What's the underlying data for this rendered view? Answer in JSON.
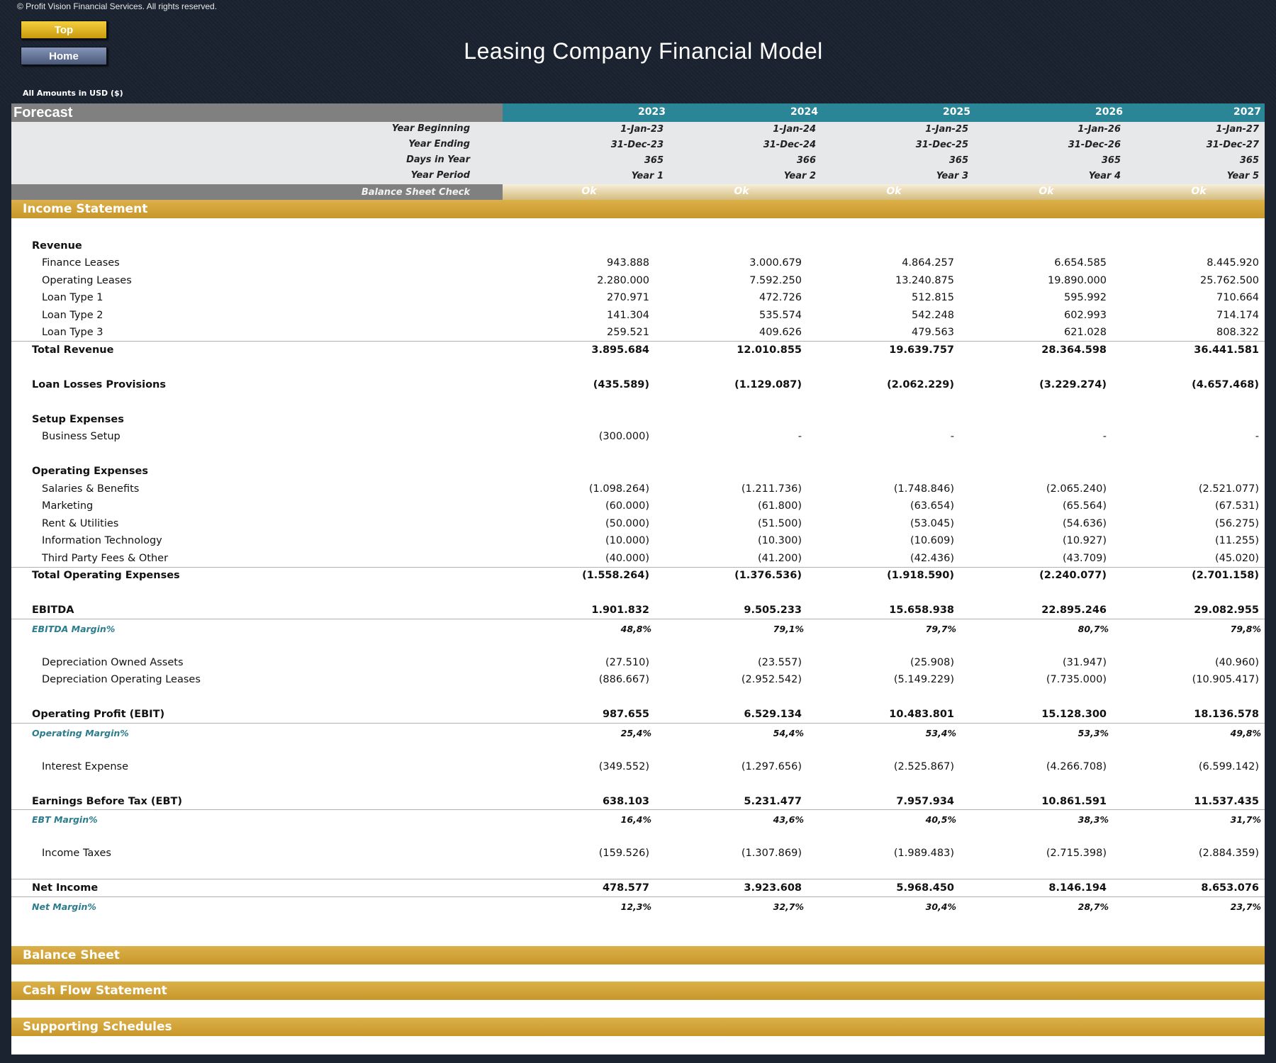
{
  "copyright": "© Profit Vision Financial Services. All rights reserved.",
  "nav": {
    "top_label": "Top",
    "home_label": "Home"
  },
  "title": "Leasing Company Financial Model",
  "units": "All Amounts in  USD ($)",
  "forecast_label": "Forecast",
  "years": [
    "2023",
    "2024",
    "2025",
    "2026",
    "2027"
  ],
  "meta_rows": [
    {
      "label": "Year Beginning",
      "values": [
        "1-Jan-23",
        "1-Jan-24",
        "1-Jan-25",
        "1-Jan-26",
        "1-Jan-27"
      ]
    },
    {
      "label": "Year Ending",
      "values": [
        "31-Dec-23",
        "31-Dec-24",
        "31-Dec-25",
        "31-Dec-26",
        "31-Dec-27"
      ]
    },
    {
      "label": "Days in Year",
      "values": [
        "365",
        "366",
        "365",
        "365",
        "365"
      ]
    },
    {
      "label": "Year Period",
      "values": [
        "Year 1",
        "Year 2",
        "Year 3",
        "Year 4",
        "Year 5"
      ]
    }
  ],
  "balance_check": {
    "label": "Balance Sheet Check",
    "values": [
      "Ok",
      "Ok",
      "Ok",
      "Ok",
      "Ok"
    ]
  },
  "sections": {
    "income": "Income Statement",
    "balance": "Balance Sheet",
    "cashflow": "Cash Flow Statement",
    "supporting": "Supporting Schedules"
  },
  "income_rows": [
    {
      "label": "Revenue",
      "type": "heading",
      "values": []
    },
    {
      "label": "Finance Leases",
      "type": "item",
      "values": [
        "943.888",
        "3.000.679",
        "4.864.257",
        "6.654.585",
        "8.445.920"
      ]
    },
    {
      "label": "Operating Leases",
      "type": "item",
      "values": [
        "2.280.000",
        "7.592.250",
        "13.240.875",
        "19.890.000",
        "25.762.500"
      ]
    },
    {
      "label": "Loan Type 1",
      "type": "item",
      "values": [
        "270.971",
        "472.726",
        "512.815",
        "595.992",
        "710.664"
      ]
    },
    {
      "label": "Loan Type 2",
      "type": "item",
      "values": [
        "141.304",
        "535.574",
        "542.248",
        "602.993",
        "714.174"
      ]
    },
    {
      "label": "Loan Type 3",
      "type": "item",
      "values": [
        "259.521",
        "409.626",
        "479.563",
        "621.028",
        "808.322"
      ]
    },
    {
      "label": "Total Revenue",
      "type": "total",
      "values": [
        "3.895.684",
        "12.010.855",
        "19.639.757",
        "28.364.598",
        "36.441.581"
      ]
    },
    {
      "label": "Loan Losses Provisions",
      "type": "total",
      "values": [
        "(435.589)",
        "(1.129.087)",
        "(2.062.229)",
        "(3.229.274)",
        "(4.657.468)"
      ]
    },
    {
      "label": "Setup Expenses",
      "type": "heading",
      "values": []
    },
    {
      "label": "Business Setup",
      "type": "item",
      "values": [
        "(300.000)",
        "-",
        "-",
        "-",
        "-"
      ]
    },
    {
      "label": "Operating Expenses",
      "type": "heading",
      "values": []
    },
    {
      "label": "Salaries & Benefits",
      "type": "item",
      "values": [
        "(1.098.264)",
        "(1.211.736)",
        "(1.748.846)",
        "(2.065.240)",
        "(2.521.077)"
      ]
    },
    {
      "label": "Marketing",
      "type": "item",
      "values": [
        "(60.000)",
        "(61.800)",
        "(63.654)",
        "(65.564)",
        "(67.531)"
      ]
    },
    {
      "label": "Rent & Utilities",
      "type": "item",
      "values": [
        "(50.000)",
        "(51.500)",
        "(53.045)",
        "(54.636)",
        "(56.275)"
      ]
    },
    {
      "label": "Information Technology",
      "type": "item",
      "values": [
        "(10.000)",
        "(10.300)",
        "(10.609)",
        "(10.927)",
        "(11.255)"
      ]
    },
    {
      "label": "Third Party Fees & Other",
      "type": "item",
      "values": [
        "(40.000)",
        "(41.200)",
        "(42.436)",
        "(43.709)",
        "(45.020)"
      ]
    },
    {
      "label": "Total Operating Expenses",
      "type": "total",
      "values": [
        "(1.558.264)",
        "(1.376.536)",
        "(1.918.590)",
        "(2.240.077)",
        "(2.701.158)"
      ]
    },
    {
      "label": "EBITDA",
      "type": "total",
      "values": [
        "1.901.832",
        "9.505.233",
        "15.658.938",
        "22.895.246",
        "29.082.955"
      ]
    },
    {
      "label": "EBITDA Margin%",
      "type": "margin",
      "values": [
        "48,8%",
        "79,1%",
        "79,7%",
        "80,7%",
        "79,8%"
      ]
    },
    {
      "label": "Depreciation Owned Assets",
      "type": "item",
      "values": [
        "(27.510)",
        "(23.557)",
        "(25.908)",
        "(31.947)",
        "(40.960)"
      ]
    },
    {
      "label": "Depreciation Operating Leases",
      "type": "item",
      "values": [
        "(886.667)",
        "(2.952.542)",
        "(5.149.229)",
        "(7.735.000)",
        "(10.905.417)"
      ]
    },
    {
      "label": "Operating Profit (EBIT)",
      "type": "total",
      "values": [
        "987.655",
        "6.529.134",
        "10.483.801",
        "15.128.300",
        "18.136.578"
      ]
    },
    {
      "label": "Operating Margin%",
      "type": "margin",
      "values": [
        "25,4%",
        "54,4%",
        "53,4%",
        "53,3%",
        "49,8%"
      ]
    },
    {
      "label": "Interest Expense",
      "type": "item",
      "values": [
        "(349.552)",
        "(1.297.656)",
        "(2.525.867)",
        "(4.266.708)",
        "(6.599.142)"
      ]
    },
    {
      "label": "Earnings Before Tax (EBT)",
      "type": "total",
      "values": [
        "638.103",
        "5.231.477",
        "7.957.934",
        "10.861.591",
        "11.537.435"
      ]
    },
    {
      "label": "EBT Margin%",
      "type": "margin",
      "values": [
        "16,4%",
        "43,6%",
        "40,5%",
        "38,3%",
        "31,7%"
      ]
    },
    {
      "label": "Income Taxes",
      "type": "item",
      "values": [
        "(159.526)",
        "(1.307.869)",
        "(1.989.483)",
        "(2.715.398)",
        "(2.884.359)"
      ]
    },
    {
      "label": "Net Income",
      "type": "total",
      "values": [
        "478.577",
        "3.923.608",
        "5.968.450",
        "8.146.194",
        "8.653.076"
      ]
    },
    {
      "label": "Net Margin%",
      "type": "margin",
      "values": [
        "12,3%",
        "32,7%",
        "30,4%",
        "28,7%",
        "23,7%"
      ]
    }
  ]
}
